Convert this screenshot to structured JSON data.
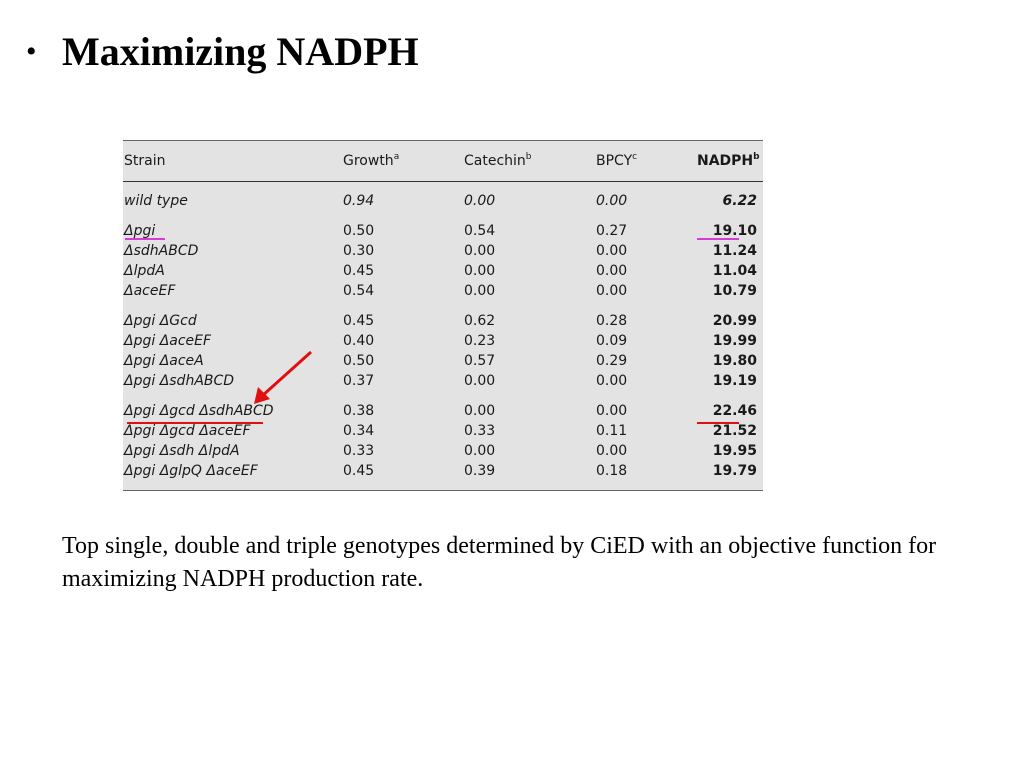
{
  "slide": {
    "bullet": "•",
    "title": "Maximizing NADPH",
    "caption": "Top single, double and triple genotypes determined by CiED with an objective function for maximizing NADPH production rate."
  },
  "table": {
    "headers": [
      {
        "label": "Strain",
        "sup": ""
      },
      {
        "label": "Growth",
        "sup": "a"
      },
      {
        "label": "Catechin",
        "sup": "b"
      },
      {
        "label": "BPCY",
        "sup": "c"
      },
      {
        "label": "NADPH",
        "sup": "b"
      }
    ],
    "rows": [
      [
        "wild type",
        "0.94",
        "0.00",
        "0.00",
        "6.22"
      ],
      [
        "Δpgi",
        "0.50",
        "0.54",
        "0.27",
        "19.10"
      ],
      [
        "ΔsdhABCD",
        "0.30",
        "0.00",
        "0.00",
        "11.24"
      ],
      [
        "ΔlpdA",
        "0.45",
        "0.00",
        "0.00",
        "11.04"
      ],
      [
        "ΔaceEF",
        "0.54",
        "0.00",
        "0.00",
        "10.79"
      ],
      [
        "Δpgi ΔGcd",
        "0.45",
        "0.62",
        "0.28",
        "20.99"
      ],
      [
        "Δpgi ΔaceEF",
        "0.40",
        "0.23",
        "0.09",
        "19.99"
      ],
      [
        "Δpgi ΔaceA",
        "0.50",
        "0.57",
        "0.29",
        "19.80"
      ],
      [
        "Δpgi ΔsdhABCD",
        "0.37",
        "0.00",
        "0.00",
        "19.19"
      ],
      [
        "Δpgi Δgcd ΔsdhABCD",
        "0.38",
        "0.00",
        "0.00",
        "22.46"
      ],
      [
        "Δpgi Δgcd ΔaceEF",
        "0.34",
        "0.33",
        "0.11",
        "21.52"
      ],
      [
        "Δpgi Δsdh ΔlpdA",
        "0.33",
        "0.00",
        "0.00",
        "19.95"
      ],
      [
        "Δpgi ΔglpQ ΔaceEF",
        "0.45",
        "0.39",
        "0.18",
        "19.79"
      ]
    ]
  },
  "annotations": {
    "highlight_color_magenta": "#d63bd6",
    "highlight_color_red": "#e01010"
  }
}
